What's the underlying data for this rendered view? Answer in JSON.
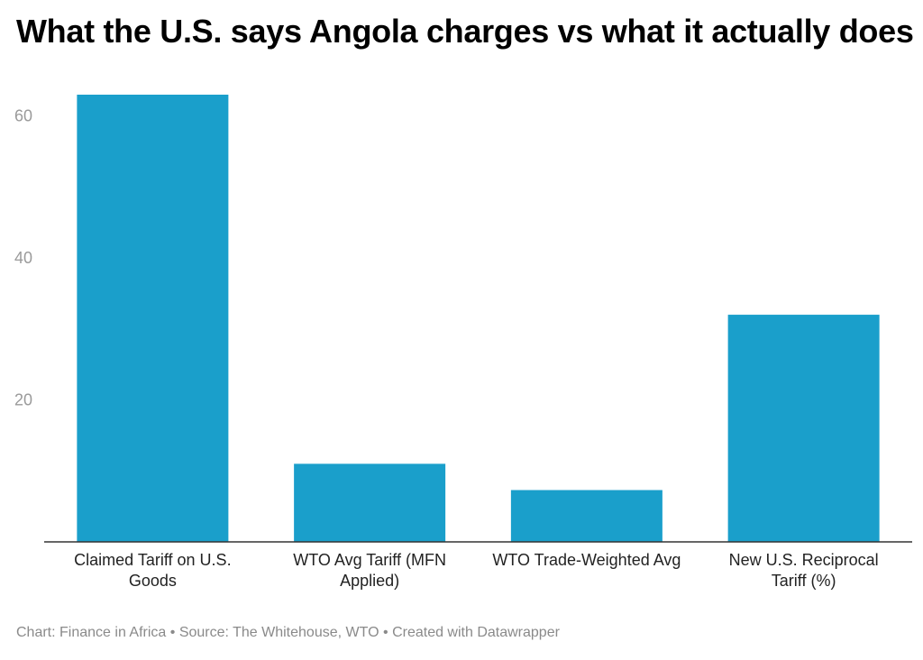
{
  "chart_data": {
    "type": "bar",
    "title": "What the U.S. says Angola charges vs what it actually does",
    "categories": [
      "Claimed Tariff on U.S. Goods",
      "WTO Avg Tariff (MFN Applied)",
      "WTO Trade-Weighted Avg",
      "New U.S. Reciprocal Tariff (%)"
    ],
    "values": [
      63,
      11,
      7.3,
      32
    ],
    "ylim": [
      0,
      63
    ],
    "yticks": [
      20,
      40,
      60
    ],
    "xlabel": "",
    "ylabel": "",
    "grid": false,
    "bar_color": "#1a9fcb"
  },
  "footer": {
    "credit": "Chart: Finance in Africa",
    "source": "Source: The Whitehouse, WTO",
    "tool": "Created with Datawrapper",
    "separator": "•"
  }
}
